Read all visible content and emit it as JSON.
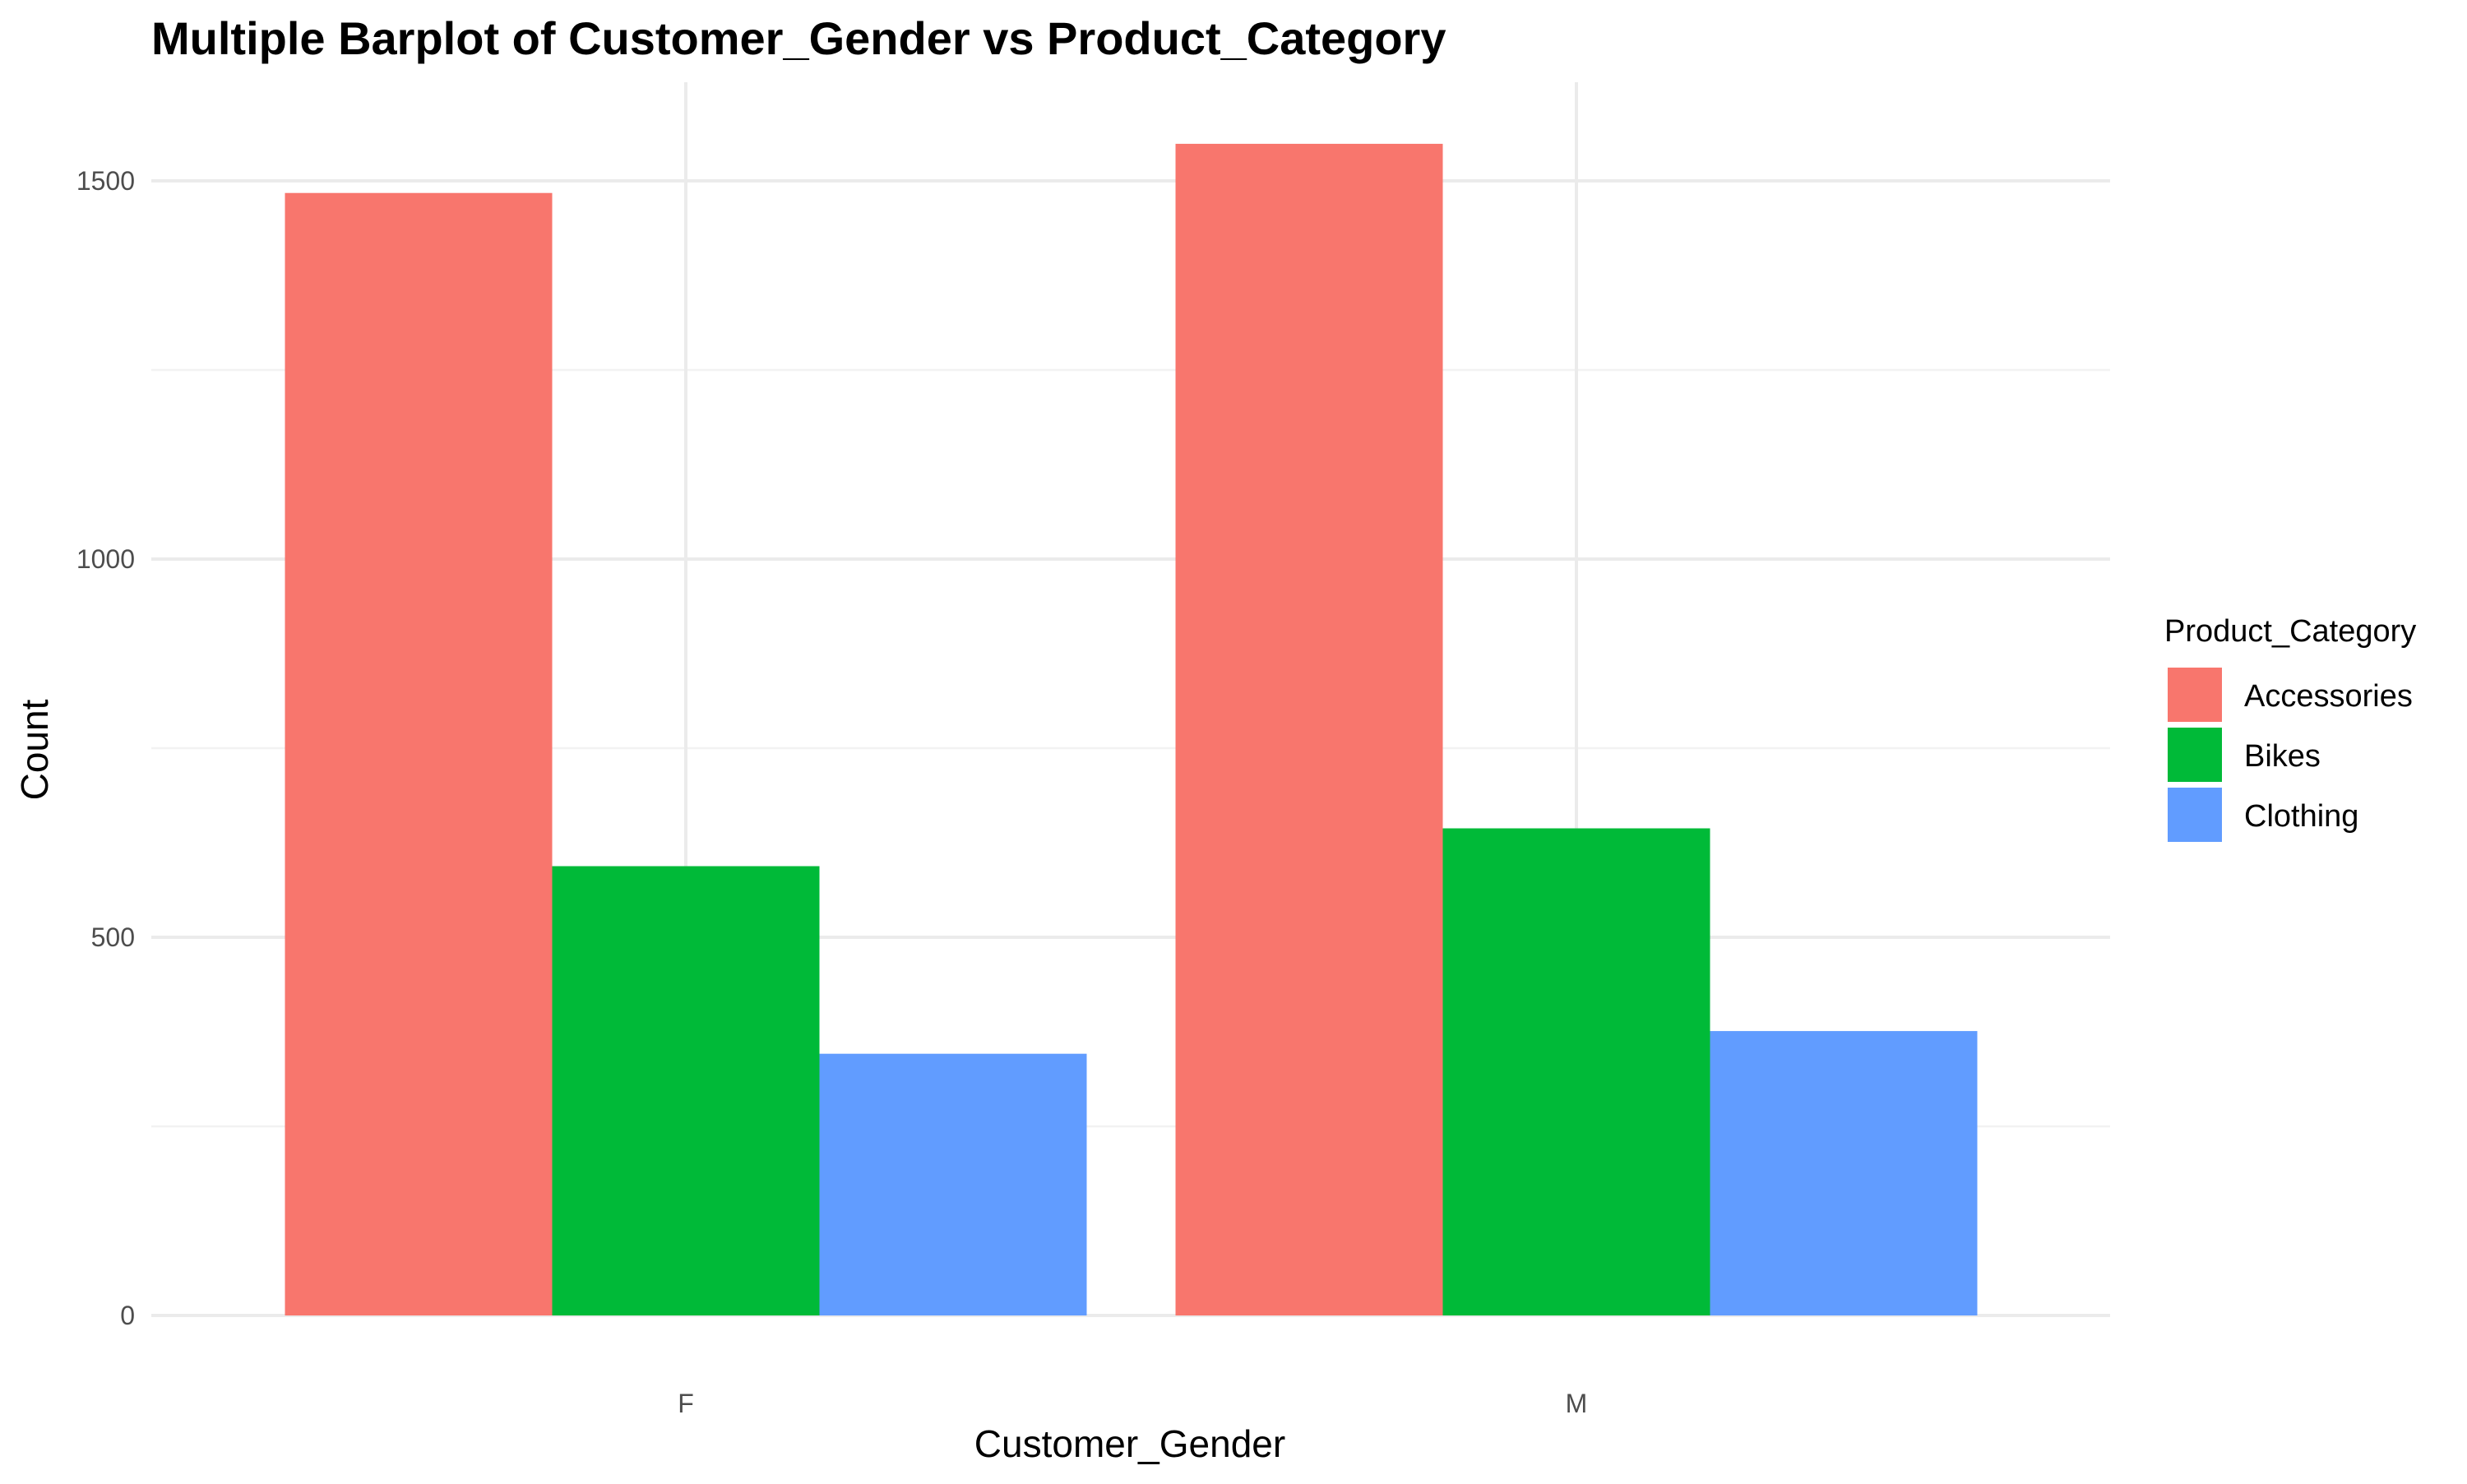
{
  "chart_data": {
    "type": "bar",
    "title": "Multiple Barplot of Customer_Gender vs Product_Category",
    "xlabel": "Customer_Gender",
    "ylabel": "Count",
    "categories": [
      "F",
      "M"
    ],
    "series": [
      {
        "name": "Accessories",
        "values": [
          1484,
          1549
        ],
        "color": "#F8766D"
      },
      {
        "name": "Bikes",
        "values": [
          594,
          644
        ],
        "color": "#00BA38"
      },
      {
        "name": "Clothing",
        "values": [
          346,
          376
        ],
        "color": "#619CFF"
      }
    ],
    "ylim": [
      0,
      1600
    ],
    "yticks": [
      0,
      500,
      1000,
      1500
    ],
    "ytick_labels": [
      "0",
      "500",
      "1000",
      "1500"
    ],
    "grid": true,
    "legend": {
      "title": "Product_Category",
      "position": "right"
    }
  }
}
